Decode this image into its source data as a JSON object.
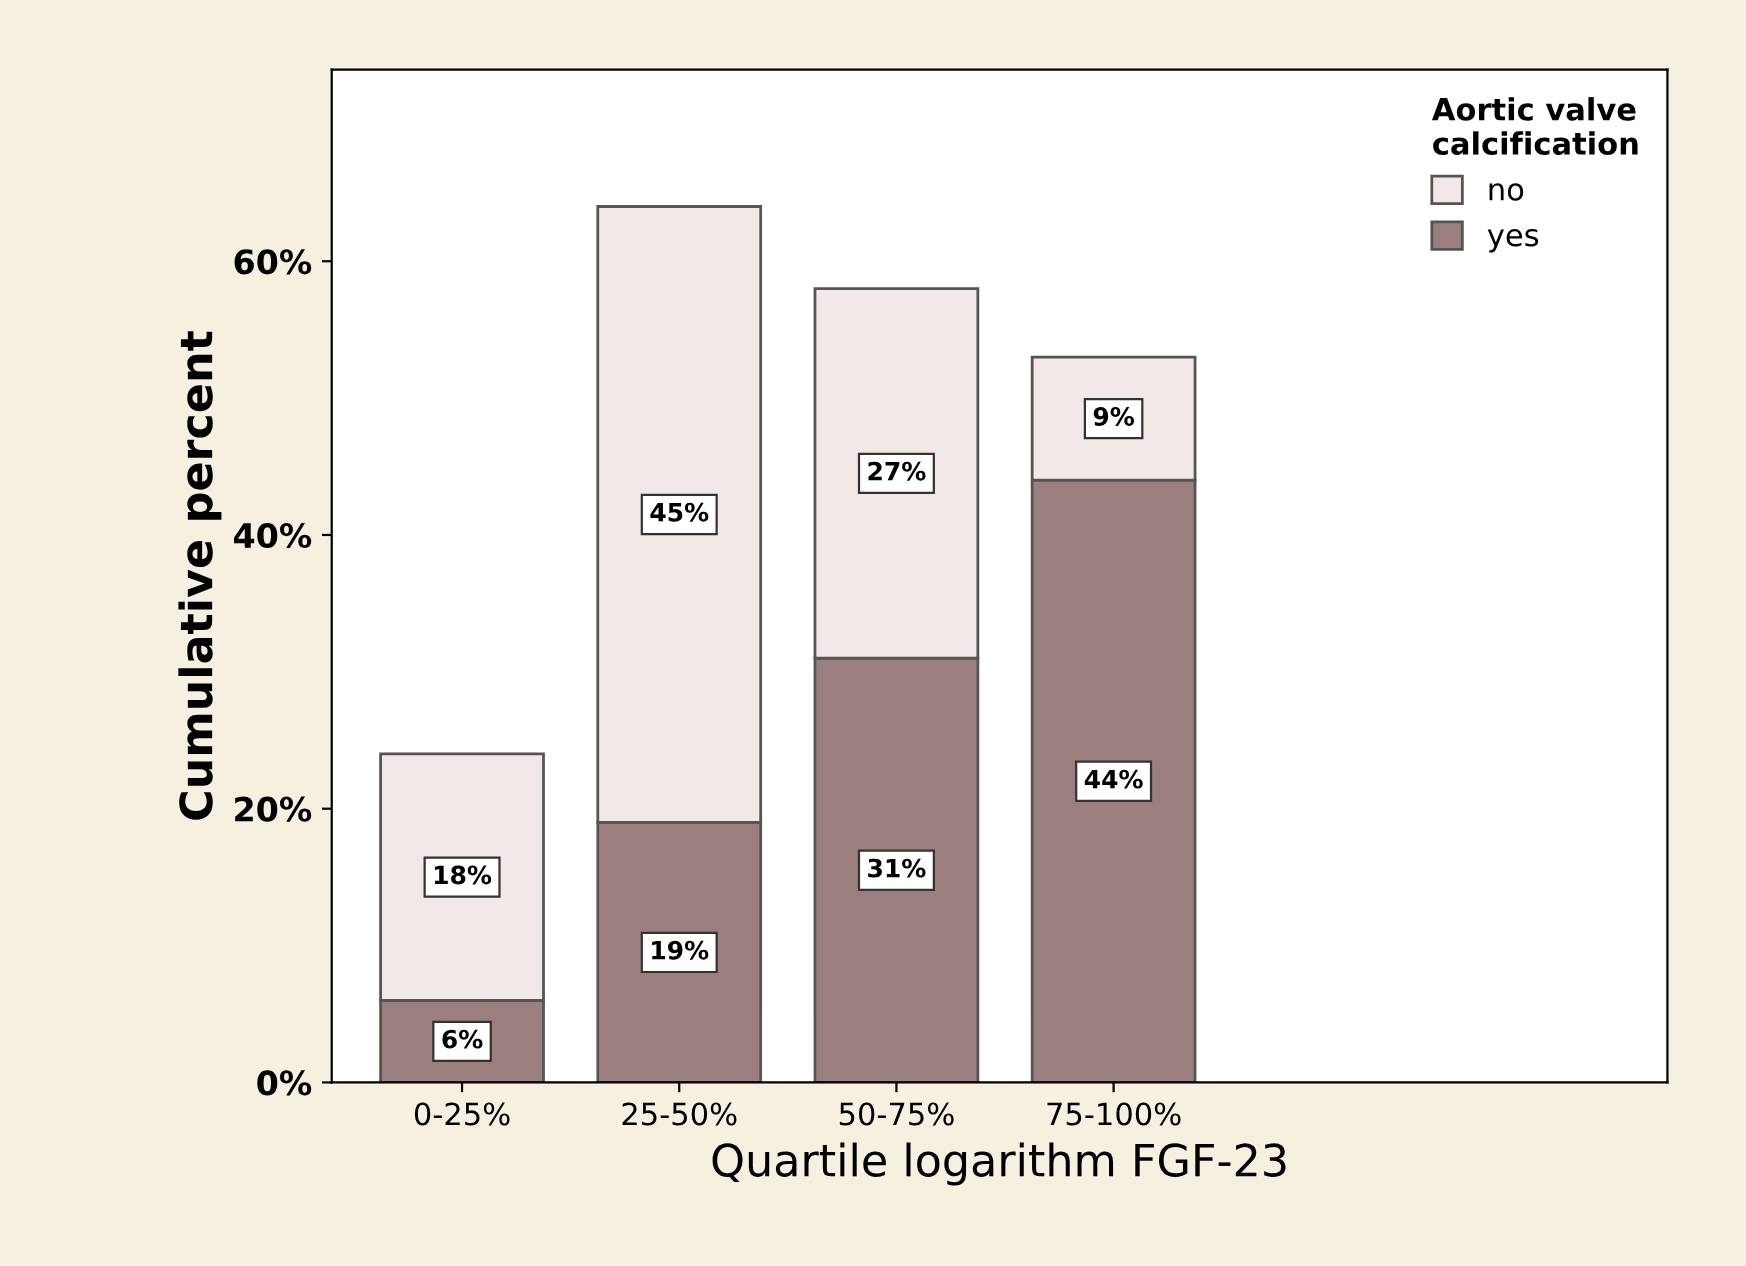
{
  "chart_data": {
    "type": "bar",
    "stacked": true,
    "xlabel": "Quartile logarithm FGF-23",
    "ylabel": "Cumulative percent",
    "legend_title": "Aortic valve\ncalcification",
    "categories": [
      "0-25%",
      "25-50%",
      "50-75%",
      "75-100%"
    ],
    "series": [
      {
        "name": "yes",
        "color": "#9b7f7e",
        "values": [
          6,
          19,
          31,
          44
        ],
        "value_labels": [
          "6%",
          "19%",
          "31%",
          "44%"
        ]
      },
      {
        "name": "no",
        "color": "#f3e8e8",
        "values": [
          18,
          45,
          27,
          9
        ],
        "value_labels": [
          "18%",
          "45%",
          "27%",
          "9%"
        ]
      }
    ],
    "ylim": [
      0,
      74
    ],
    "yticks": [
      {
        "value": 0,
        "label": "0%"
      },
      {
        "value": 20,
        "label": "20%"
      },
      {
        "value": 40,
        "label": "40%"
      },
      {
        "value": 60,
        "label": "60%"
      }
    ],
    "legend": "top right",
    "grid": false
  }
}
